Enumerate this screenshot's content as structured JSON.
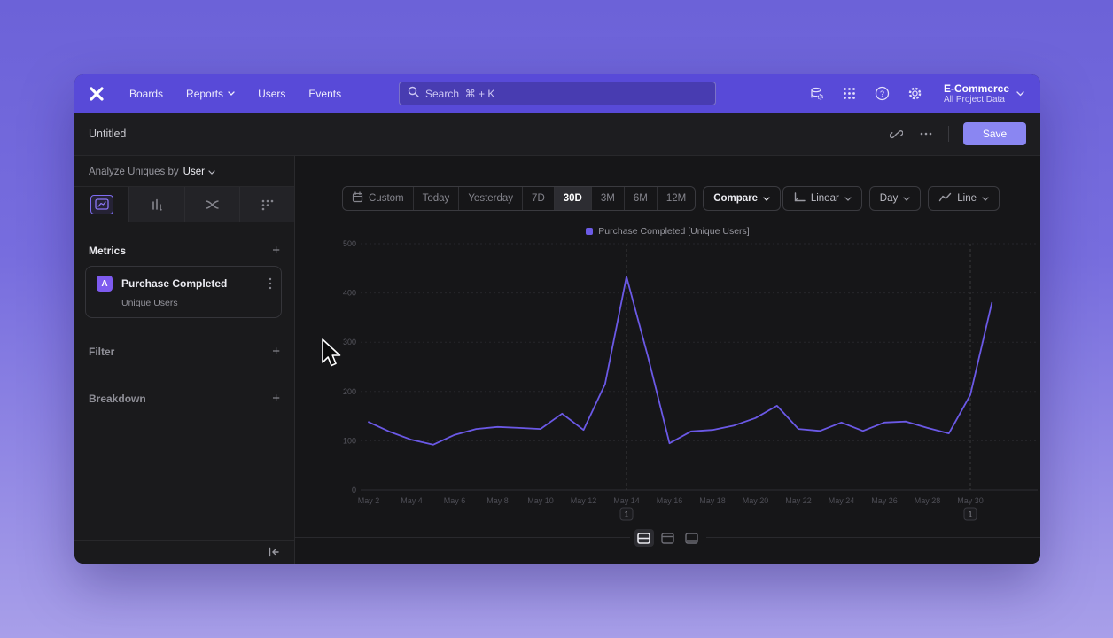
{
  "topnav": {
    "nav_items": [
      {
        "label": "Boards",
        "chevron": false
      },
      {
        "label": "Reports",
        "chevron": true
      },
      {
        "label": "Users",
        "chevron": false
      },
      {
        "label": "Events",
        "chevron": false
      }
    ],
    "search_placeholder": "Search  ⌘ + K",
    "project_name": "E-Commerce",
    "project_scope": "All Project Data"
  },
  "header": {
    "title": "Untitled",
    "save_label": "Save"
  },
  "sidebar": {
    "analyze_prefix": "Analyze Uniques by",
    "analyze_value": "User",
    "metrics_title": "Metrics",
    "metric_card": {
      "badge": "A",
      "name": "Purchase Completed",
      "subtitle": "Unique Users"
    },
    "filter_title": "Filter",
    "breakdown_title": "Breakdown",
    "add_symbol": "+"
  },
  "toolbar": {
    "date_ranges": [
      "Custom",
      "Today",
      "Yesterday",
      "7D",
      "30D",
      "3M",
      "6M",
      "12M"
    ],
    "active_range": "30D",
    "compare_label": "Compare",
    "scale_label": "Linear",
    "interval_label": "Day",
    "chart_type_label": "Line"
  },
  "chart_data": {
    "type": "line",
    "legend": "Purchase Completed [Unique Users]",
    "x": [
      "May 2",
      "May 3",
      "May 4",
      "May 5",
      "May 6",
      "May 7",
      "May 8",
      "May 9",
      "May 10",
      "May 11",
      "May 12",
      "May 13",
      "May 14",
      "May 15",
      "May 16",
      "May 17",
      "May 18",
      "May 19",
      "May 20",
      "May 21",
      "May 22",
      "May 23",
      "May 24",
      "May 25",
      "May 26",
      "May 27",
      "May 28",
      "May 29",
      "May 30",
      "May 31"
    ],
    "values": [
      138,
      118,
      102,
      92,
      112,
      124,
      128,
      126,
      124,
      155,
      122,
      215,
      433,
      270,
      95,
      119,
      122,
      131,
      146,
      171,
      124,
      120,
      137,
      120,
      137,
      139,
      126,
      115,
      193,
      380
    ],
    "ylim": [
      0,
      500
    ],
    "yticks": [
      0,
      100,
      200,
      300,
      400,
      500
    ],
    "xtick_every": 2,
    "grid": "horizontal-dashed",
    "legend_position": "top-center",
    "line_color": "#6b59e6",
    "annotations": [
      {
        "x_index": 12,
        "x_label": "May 14",
        "label": "1"
      },
      {
        "x_index": 28,
        "x_label": "May 30",
        "label": "1"
      }
    ]
  },
  "colors": {
    "nav_background": "#584ad8",
    "accent_purple": "#7e5bef",
    "save_button": "#8a86f2",
    "line_series": "#6b59e6",
    "window_background": "#19191b"
  },
  "icons": {
    "logo": "mixpanel-x",
    "search": "magnifier",
    "data": "database-gear",
    "apps": "dots-grid",
    "help": "question-circle",
    "settings": "gear",
    "share": "link",
    "more": "ellipsis",
    "custom_range": "calendar",
    "scale": "axis",
    "chart_type": "line-chart",
    "collapse": "collapse-left"
  }
}
